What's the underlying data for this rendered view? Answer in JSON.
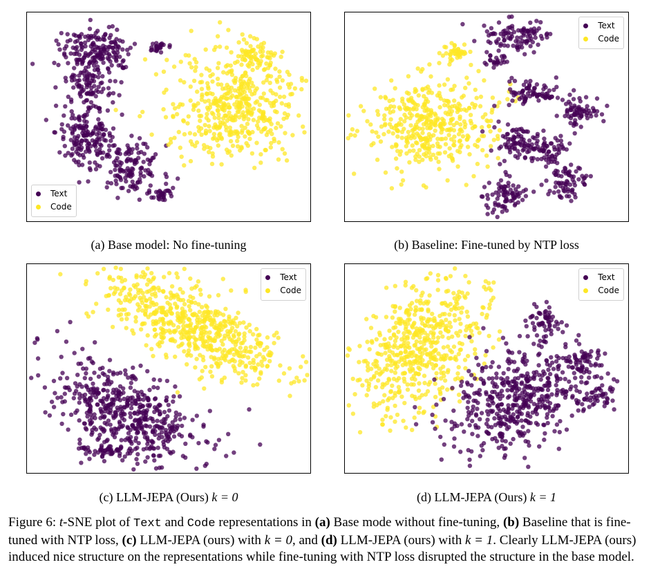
{
  "colors": {
    "text": "#440154",
    "code": "#fde725"
  },
  "legend": {
    "text_label": "Text",
    "code_label": "Code"
  },
  "figure": {
    "subcaptions": {
      "a": "(a) Base model: No fine-tuning",
      "b": "(b) Baseline: Fine-tuned by NTP loss",
      "c_prefix": "(c) LLM-JEPA (Ours) ",
      "c_math": "k = 0",
      "d_prefix": "(d) LLM-JEPA (Ours) ",
      "d_math": "k = 1"
    },
    "caption": {
      "fig_label": "Figure 6:",
      "t": "t",
      "p1": "-SNE plot of ",
      "text_token": "Text",
      "p2": " and ",
      "code_token": "Code",
      "p3": " representations in ",
      "a_bold": "(a)",
      "p4": " Base mode without fine-tuning, ",
      "b_bold": "(b)",
      "p5": " Baseline that is fine-tuned with NTP loss, ",
      "c_bold": "(c)",
      "p6": " LLM-JEPA (ours) with ",
      "k0": "k = 0",
      "p7": ", and ",
      "d_bold": "(d)",
      "p8": " LLM-JEPA (ours) with ",
      "k1": "k = 1",
      "p9": ". Clearly LLM-JEPA (ours) induced nice structure on the representations while fine-tuning with NTP loss disrupted the structure in the base model."
    }
  },
  "chart_data": [
    {
      "type": "scatter",
      "panel": "a",
      "series": [
        {
          "name": "Text"
        },
        {
          "name": "Code"
        }
      ],
      "legend": "lower-left",
      "grid": false
    },
    {
      "type": "scatter",
      "panel": "b",
      "series": [
        {
          "name": "Text"
        },
        {
          "name": "Code"
        }
      ],
      "legend": "top-right",
      "grid": false
    },
    {
      "type": "scatter",
      "panel": "c",
      "series": [
        {
          "name": "Text"
        },
        {
          "name": "Code"
        }
      ],
      "legend": "top-right",
      "grid": false
    },
    {
      "type": "scatter",
      "panel": "d",
      "series": [
        {
          "name": "Text"
        },
        {
          "name": "Code"
        }
      ],
      "legend": "top-right",
      "grid": false
    }
  ]
}
